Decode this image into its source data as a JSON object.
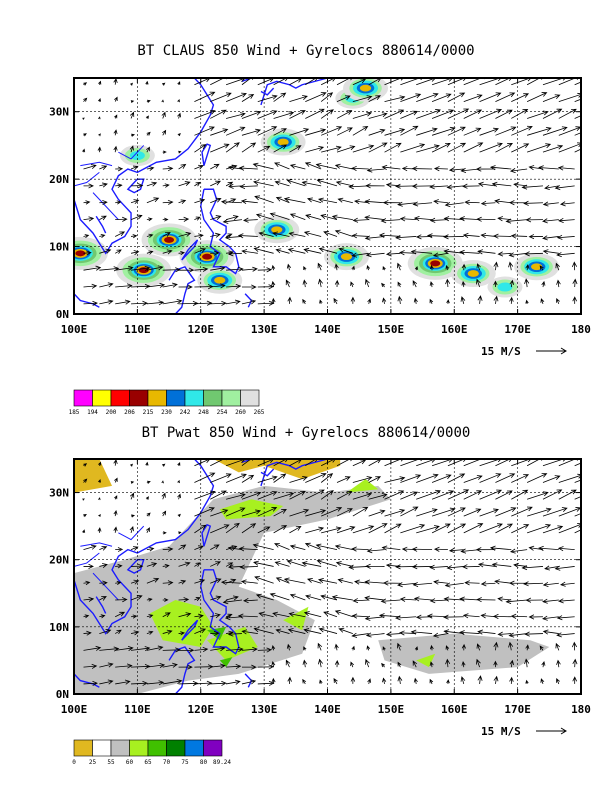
{
  "chart_data": [
    {
      "type": "map",
      "title": "BT CLAUS 850 Wind + Gyrelocs 880614/0000",
      "x_ticks": [
        "100E",
        "110E",
        "120E",
        "130E",
        "140E",
        "150E",
        "160E",
        "170E",
        "180"
      ],
      "y_ticks": [
        "0N",
        "10N",
        "20N",
        "30N"
      ],
      "x_range": [
        100,
        180
      ],
      "y_range": [
        0,
        35
      ],
      "grid": true,
      "vector_reference": "15 M/S",
      "colorbar": {
        "labels": [
          "185",
          "194",
          "200",
          "206",
          "215",
          "230",
          "242",
          "248",
          "254",
          "260",
          "265"
        ],
        "colors": [
          "#ff00ff",
          "#ffff00",
          "#ff0000",
          "#990000",
          "#e8b800",
          "#0070d8",
          "#30e8e8",
          "#70c870",
          "#a0f0a0",
          "#e0e0e0"
        ]
      },
      "features": [
        {
          "lon": 115,
          "lat": 11,
          "level": 3
        },
        {
          "lon": 111,
          "lat": 6.5,
          "level": 3
        },
        {
          "lon": 121,
          "lat": 8.5,
          "level": 3
        },
        {
          "lon": 101,
          "lat": 9,
          "level": 3
        },
        {
          "lon": 123,
          "lat": 5,
          "level": 2
        },
        {
          "lon": 132,
          "lat": 12.5,
          "level": 2
        },
        {
          "lon": 133,
          "lat": 25.5,
          "level": 2
        },
        {
          "lon": 144,
          "lat": 32,
          "level": 1
        },
        {
          "lon": 146,
          "lat": 33.5,
          "level": 2
        },
        {
          "lon": 143,
          "lat": 8.5,
          "level": 2
        },
        {
          "lon": 157,
          "lat": 7.5,
          "level": 3
        },
        {
          "lon": 163,
          "lat": 6,
          "level": 2
        },
        {
          "lon": 173,
          "lat": 7,
          "level": 2
        },
        {
          "lon": 168,
          "lat": 4,
          "level": 1
        },
        {
          "lon": 110,
          "lat": 23.5,
          "level": 1
        }
      ]
    },
    {
      "type": "map",
      "title": "BT Pwat 850 Wind + Gyrelocs 880614/0000",
      "x_ticks": [
        "100E",
        "110E",
        "120E",
        "130E",
        "140E",
        "150E",
        "160E",
        "170E",
        "180"
      ],
      "y_ticks": [
        "0N",
        "10N",
        "20N",
        "30N"
      ],
      "x_range": [
        100,
        180
      ],
      "y_range": [
        0,
        35
      ],
      "grid": true,
      "vector_reference": "15 M/S",
      "colorbar": {
        "labels": [
          "0",
          "25",
          "55",
          "60",
          "65",
          "70",
          "75",
          "80",
          "89.24"
        ],
        "colors": [
          "#e0b820",
          "#ffffff",
          "#c0c0c0",
          "#a8f020",
          "#40c000",
          "#008000",
          "#0078e0",
          "#8000c0"
        ]
      }
    }
  ]
}
